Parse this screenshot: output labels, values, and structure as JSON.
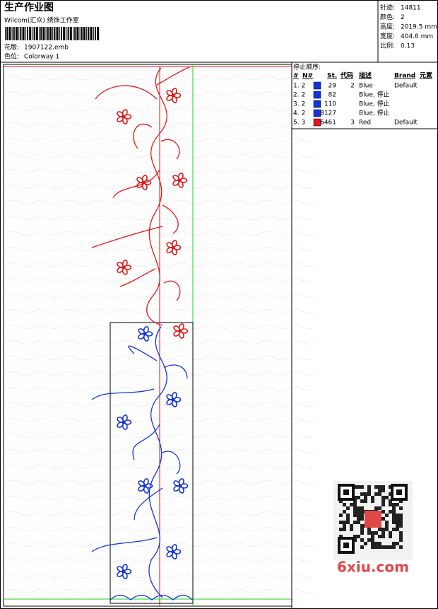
{
  "header": {
    "title": "生产作业图",
    "company": "Wilcom(汇众) 绣饰工作室",
    "design_label": "花版:",
    "design_file": "1907122.emb",
    "colorway_label": "色位:",
    "colorway": "Colorway 1"
  },
  "stats": [
    {
      "label": "针迹:",
      "value": "14811"
    },
    {
      "label": "颜色:",
      "value": "2"
    },
    {
      "label": "高度:",
      "value": "2019.5 mm"
    },
    {
      "label": "宽度:",
      "value": "404.6 mm"
    },
    {
      "label": "比例:",
      "value": "0.13"
    }
  ],
  "stop_sequence": {
    "title": "停止顺序:",
    "columns": [
      "#",
      "N#",
      "St.",
      "代码",
      "描述",
      "Brand",
      "元素"
    ],
    "rows": [
      {
        "index": "1. 2",
        "color": "#1533d6",
        "stitches": "29",
        "code": "2",
        "description": "Blue",
        "brand": "Default"
      },
      {
        "index": "2. 2",
        "color": "#1533d6",
        "stitches": "82",
        "description": "Blue, 停止"
      },
      {
        "index": "3. 2",
        "color": "#1533d6",
        "stitches": "110",
        "description": "Blue, 停止"
      },
      {
        "index": "4. 2",
        "color": "#1533d6",
        "stitches": "8127",
        "description": "Blue, 停止"
      },
      {
        "index": "5. 3",
        "color": "#e01818",
        "stitches": "6461",
        "code": "3",
        "description": "Red",
        "brand": "Default"
      }
    ]
  },
  "watermark": "6xiu.com"
}
